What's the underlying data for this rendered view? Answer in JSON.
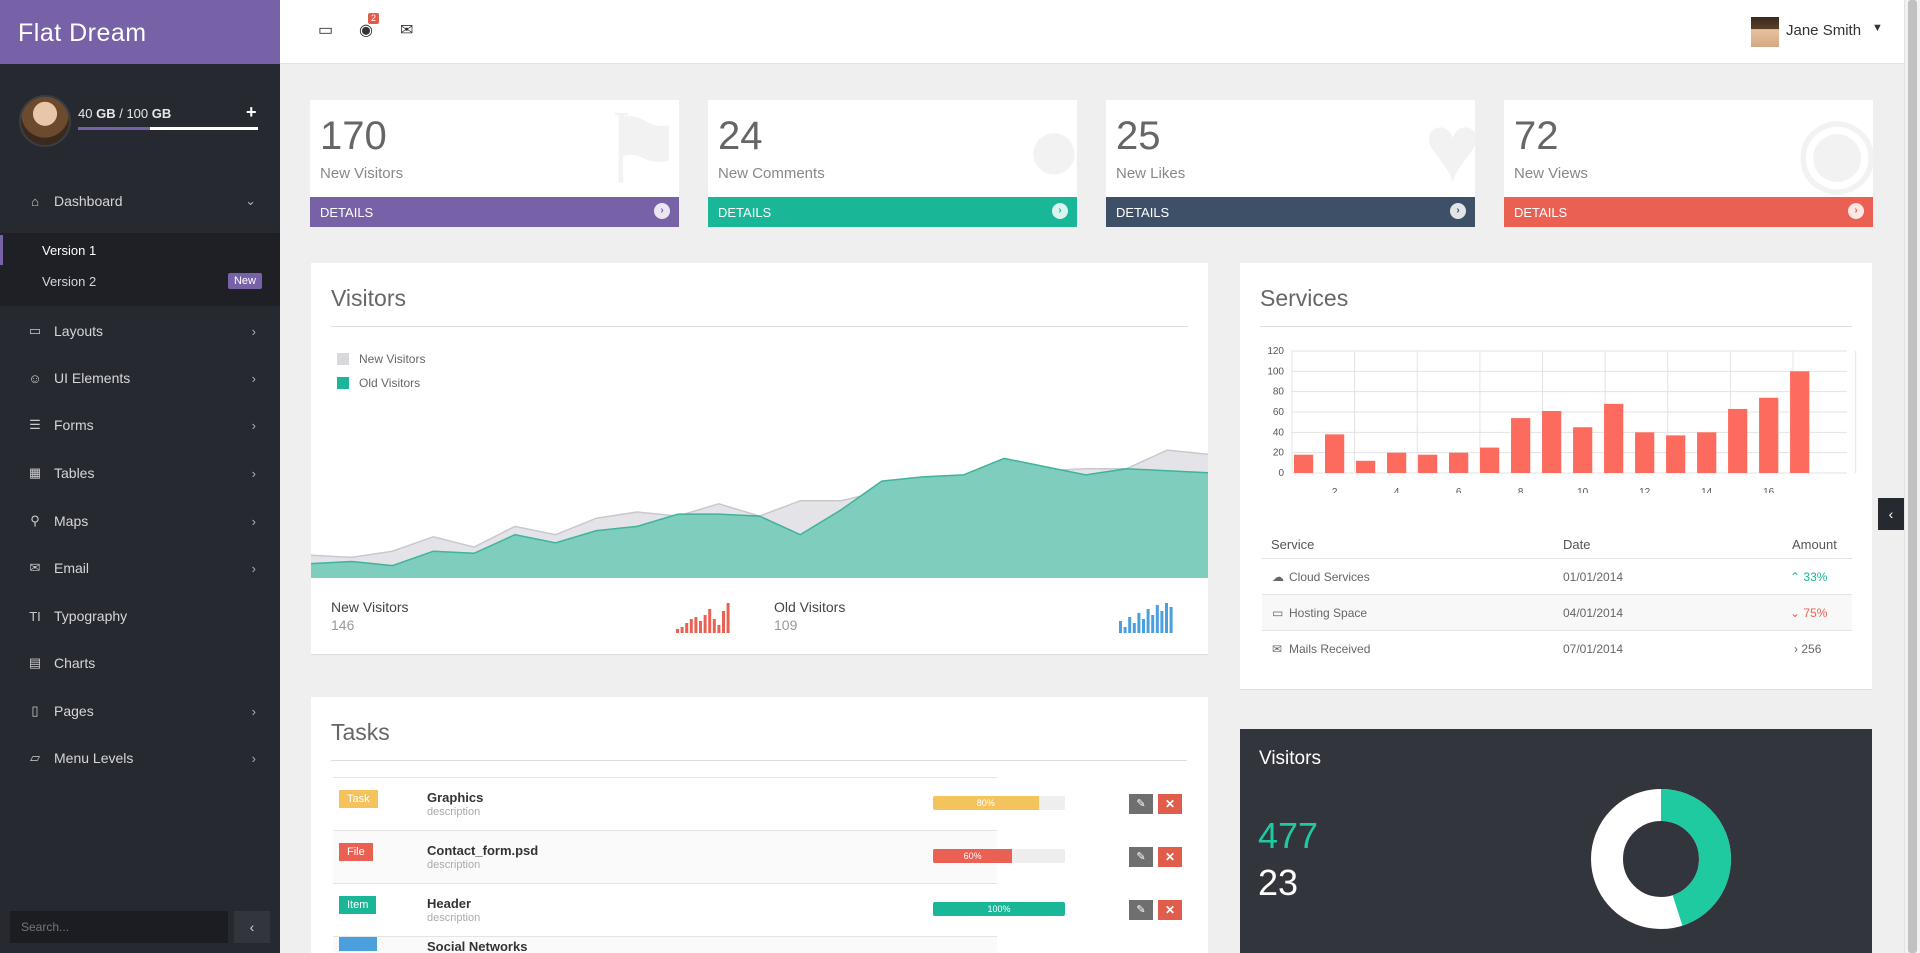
{
  "brand": "Flat Dream",
  "storage": {
    "used": "40",
    "used_unit": "GB",
    "sep": " / ",
    "total": "100",
    "total_unit": "GB",
    "fraction": 0.4
  },
  "sidebar": {
    "items": [
      {
        "label": "Dashboard",
        "icon": "home-icon",
        "glyph": "⌂"
      },
      {
        "label": "Layouts",
        "icon": "desktop-icon",
        "glyph": "▭"
      },
      {
        "label": "UI Elements",
        "icon": "smile-icon",
        "glyph": "☺"
      },
      {
        "label": "Forms",
        "icon": "list-alt-icon",
        "glyph": "☰"
      },
      {
        "label": "Tables",
        "icon": "table-icon",
        "glyph": "▦"
      },
      {
        "label": "Maps",
        "icon": "map-marker-icon",
        "glyph": "⚲"
      },
      {
        "label": "Email",
        "icon": "envelope-icon",
        "glyph": "✉"
      },
      {
        "label": "Typography",
        "icon": "text-height-icon",
        "glyph": "TI"
      },
      {
        "label": "Charts",
        "icon": "bar-chart-icon",
        "glyph": "▤"
      },
      {
        "label": "Pages",
        "icon": "file-icon",
        "glyph": "▯"
      },
      {
        "label": "Menu Levels",
        "icon": "folder-open-icon",
        "glyph": "▱"
      }
    ],
    "submenu": [
      {
        "label": "Version 1"
      },
      {
        "label": "Version 2",
        "badge": "New"
      }
    ],
    "search_placeholder": "Search..."
  },
  "topbar": {
    "notif_count": "2",
    "user_name": "Jane Smith"
  },
  "tiles": [
    {
      "value": "170",
      "label": "New Visitors",
      "footer": "DETAILS",
      "color": "#7761a7",
      "icon": "flag-icon"
    },
    {
      "value": "24",
      "label": "New Comments",
      "footer": "DETAILS",
      "color": "#19b698",
      "icon": "comment-icon"
    },
    {
      "value": "25",
      "label": "New Likes",
      "footer": "DETAILS",
      "color": "#3d5067",
      "icon": "heart-icon"
    },
    {
      "value": "72",
      "label": "New Views",
      "footer": "DETAILS",
      "color": "#ea6153",
      "icon": "eye-icon"
    }
  ],
  "visitors": {
    "title": "Visitors",
    "legend": [
      {
        "name": "New Visitors",
        "color": "#d8d8dd"
      },
      {
        "name": "Old Visitors",
        "color": "#19b698"
      }
    ],
    "stats": [
      {
        "label": "New Visitors",
        "value": "146"
      },
      {
        "label": "Old Visitors",
        "value": "109"
      }
    ]
  },
  "services": {
    "title": "Services",
    "columns": [
      "Service",
      "Date",
      "Amount"
    ],
    "rows": [
      {
        "service": "Cloud Services",
        "icon": "cloud-icon",
        "glyph": "☁",
        "date": "01/01/2014",
        "amount": "33%",
        "trend": "up",
        "trend_glyph": "⌃",
        "color": "#19b698"
      },
      {
        "service": "Hosting Space",
        "icon": "inbox-icon",
        "glyph": "▭",
        "date": "04/01/2014",
        "amount": "75%",
        "trend": "down",
        "trend_glyph": "⌄",
        "color": "#ea6153"
      },
      {
        "service": "Mails Received",
        "icon": "envelope-icon",
        "glyph": "✉",
        "date": "07/01/2014",
        "amount": "256",
        "trend": "right",
        "trend_glyph": "›",
        "color": "#666666"
      }
    ]
  },
  "tasks": {
    "title": "Tasks",
    "rows": [
      {
        "tag": "Task",
        "tag_color": "#f4c35d",
        "name": "Graphics",
        "desc": "description",
        "progress": 80,
        "progress_label": "80%",
        "bar_color": "#f4c35d"
      },
      {
        "tag": "File",
        "tag_color": "#ea6153",
        "name": "Contact_form.psd",
        "desc": "description",
        "progress": 60,
        "progress_label": "60%",
        "bar_color": "#ea6153"
      },
      {
        "tag": "Item",
        "tag_color": "#19b698",
        "name": "Header",
        "desc": "description",
        "progress": 100,
        "progress_label": "100%",
        "bar_color": "#19b698"
      },
      {
        "tag": "",
        "tag_color": "#4a9fdc",
        "name": "Social Networks",
        "desc": "",
        "progress": 0,
        "progress_label": "",
        "bar_color": "#4a9fdc"
      }
    ]
  },
  "visitors_summary": {
    "title": "Visitors",
    "value_a": "477",
    "value_b": "23",
    "fraction_a": 0.45
  },
  "chart_data": [
    {
      "type": "area",
      "x": [
        1,
        2,
        3,
        4,
        5,
        6,
        7,
        8,
        9,
        10,
        11,
        12,
        13,
        14,
        15,
        16,
        17,
        18,
        19,
        20,
        21,
        22,
        23
      ],
      "series": [
        {
          "name": "New Visitors",
          "values": [
            22,
            20,
            26,
            40,
            30,
            50,
            42,
            58,
            64,
            60,
            72,
            60,
            75,
            75,
            84,
            92,
            88,
            100,
            104,
            106,
            106,
            124,
            120
          ]
        },
        {
          "name": "Old Visitors",
          "values": [
            14,
            16,
            12,
            26,
            24,
            42,
            34,
            46,
            50,
            62,
            62,
            60,
            42,
            66,
            94,
            98,
            100,
            116,
            108,
            100,
            106,
            104,
            102
          ]
        }
      ],
      "ylim": [
        0,
        160
      ]
    },
    {
      "type": "bar",
      "x": [
        1,
        2,
        3,
        4,
        5,
        6,
        7,
        8,
        9,
        10,
        11,
        12,
        13,
        14,
        15,
        16,
        17,
        18
      ],
      "values": [
        18,
        38,
        12,
        20,
        18,
        20,
        25,
        54,
        61,
        45,
        68,
        40,
        37,
        40,
        63,
        74,
        100,
        0
      ],
      "ylim": [
        0,
        120
      ],
      "yticks": [
        0,
        20,
        40,
        60,
        80,
        100,
        120
      ],
      "xticks": [
        2,
        4,
        6,
        8,
        10,
        12,
        14,
        16
      ]
    },
    {
      "type": "bar",
      "name": "New Visitors spark",
      "values": [
        2,
        3,
        5,
        7,
        8,
        6,
        9,
        12,
        7,
        4,
        11,
        15
      ],
      "color": "#ea6153"
    },
    {
      "type": "bar",
      "name": "Old Visitors spark",
      "values": [
        6,
        3,
        8,
        5,
        10,
        7,
        12,
        9,
        14,
        11,
        15,
        13
      ],
      "color": "#4a9fdc"
    },
    {
      "type": "pie",
      "values": [
        477,
        23
      ],
      "colors": [
        "#1fcaa0",
        "#ffffff"
      ]
    }
  ]
}
